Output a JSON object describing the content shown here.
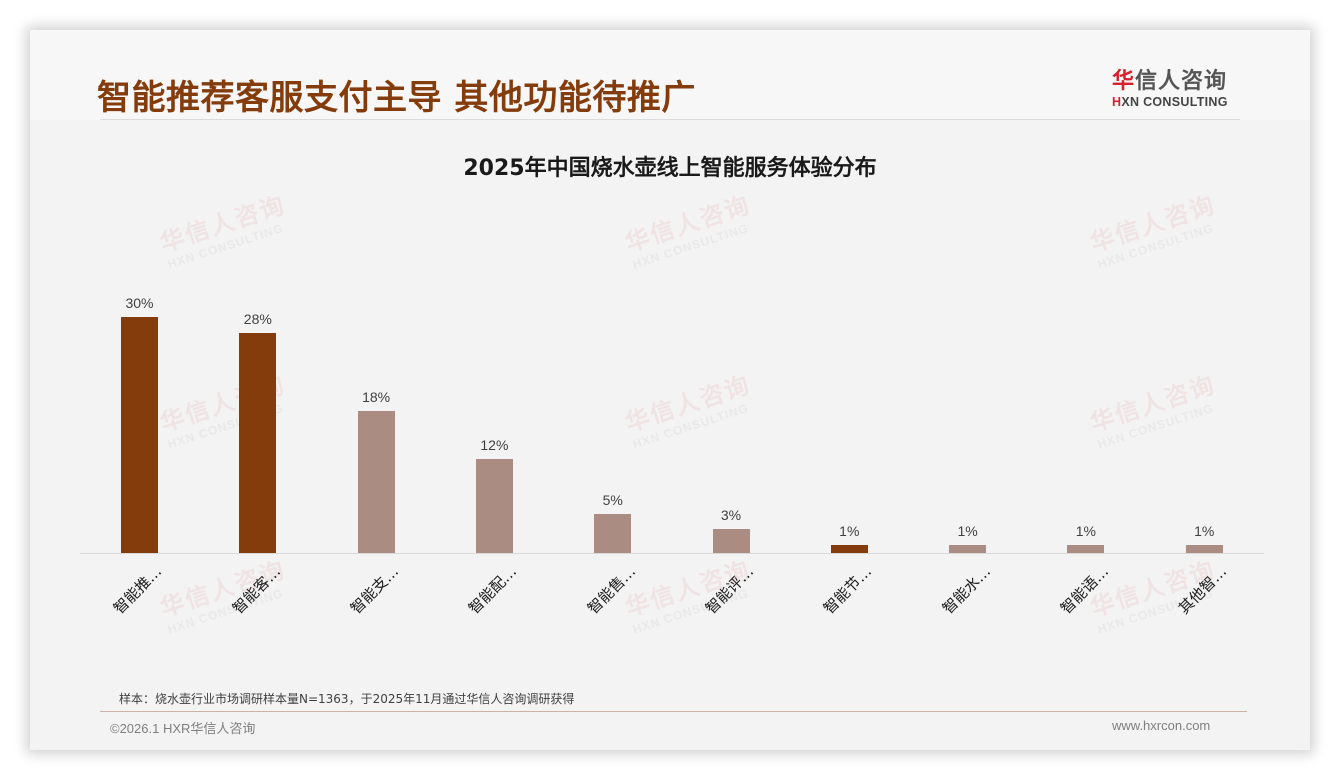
{
  "header": {
    "title": "智能推荐客服支付主导 其他功能待推广",
    "logo": {
      "cn_accent": "华",
      "cn_rest": "信人咨询",
      "en_accent": "H",
      "en_rest": "XN CONSULTING"
    }
  },
  "watermark": {
    "cn": "华信人咨询",
    "en": "HXN CONSULTING"
  },
  "colors": {
    "primary": "#843c0c",
    "secondary": "#ab8c82",
    "title": "#843c0c"
  },
  "chart_data": {
    "type": "bar",
    "title": "2025年中国烧水壶线上智能服务体验分布",
    "categories": [
      "智能推…",
      "智能客…",
      "智能支…",
      "智能配…",
      "智能售…",
      "智能评…",
      "智能节…",
      "智能水…",
      "智能语…",
      "其他智…"
    ],
    "values": [
      30,
      28,
      18,
      12,
      5,
      3,
      1,
      1,
      1,
      1
    ],
    "value_labels": [
      "30%",
      "28%",
      "18%",
      "12%",
      "5%",
      "3%",
      "1%",
      "1%",
      "1%",
      "1%"
    ],
    "bar_colors": [
      "#843c0c",
      "#843c0c",
      "#ab8c82",
      "#ab8c82",
      "#ab8c82",
      "#ab8c82",
      "#843c0c",
      "#ab8c82",
      "#ab8c82",
      "#ab8c82"
    ],
    "xlabel": "",
    "ylabel": "",
    "ylim": [
      0,
      30
    ],
    "grid": false,
    "legend": null,
    "unit": "%"
  },
  "footer": {
    "note": "样本：烧水壶行业市场调研样本量N=1363，于2025年11月通过华信人咨询调研获得",
    "copyright": "©2026.1 HXR华信人咨询",
    "website": "www.hxrcon.com"
  }
}
